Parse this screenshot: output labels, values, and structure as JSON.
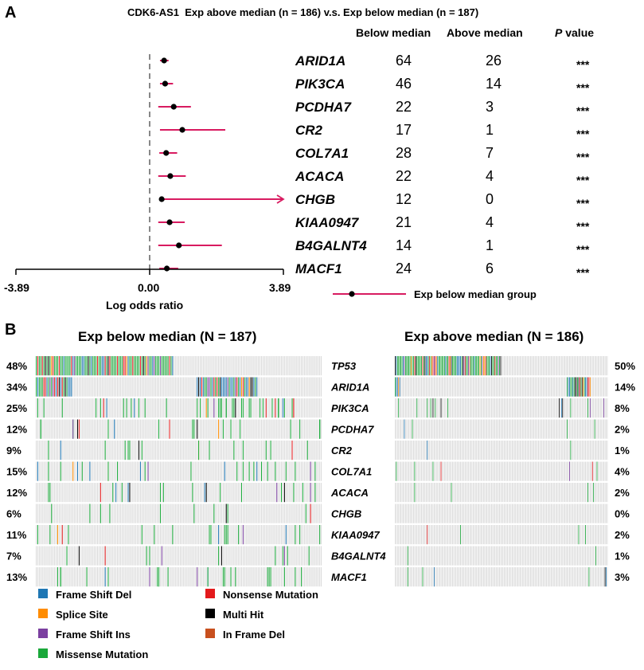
{
  "colors": {
    "whisker": "#d81b60",
    "dot": "#000000",
    "cell_bg": "#d9d9d9",
    "frame_shift_del": "#1f77b4",
    "splice_site": "#ff8c00",
    "frame_shift_ins": "#7b3fa0",
    "missense": "#1aa83a",
    "nonsense": "#e31a1c",
    "multi_hit": "#000000",
    "in_frame_del": "#c8501e"
  },
  "chart_data": [
    {
      "type": "forest",
      "panel_label": "A",
      "title": "CDK6-AS1  Exp above median (n = 186) v.s. Exp below median (n = 187)",
      "column_headers": {
        "below": "Below median",
        "above": "Above median",
        "p_italic": "P",
        "p_rest": " value"
      },
      "xlabel": "Log odds ratio",
      "xlim": [
        -3.89,
        3.89
      ],
      "ticks": [
        "-3.89",
        "0.00",
        "3.89"
      ],
      "legend": "Exp below median group",
      "rows": [
        {
          "gene": "ARID1A",
          "below": "64",
          "above": "26",
          "p": "***",
          "or": 0.42,
          "lo": 0.3,
          "hi": 0.55,
          "arrow": false
        },
        {
          "gene": "PIK3CA",
          "below": "46",
          "above": "14",
          "p": "***",
          "or": 0.45,
          "lo": 0.3,
          "hi": 0.68,
          "arrow": false
        },
        {
          "gene": "PCDHA7",
          "below": "22",
          "above": "3",
          "p": "***",
          "or": 0.7,
          "lo": 0.25,
          "hi": 1.2,
          "arrow": false
        },
        {
          "gene": "CR2",
          "below": "17",
          "above": "1",
          "p": "***",
          "or": 0.95,
          "lo": 0.3,
          "hi": 2.2,
          "arrow": false
        },
        {
          "gene": "COL7A1",
          "below": "28",
          "above": "7",
          "p": "***",
          "or": 0.48,
          "lo": 0.28,
          "hi": 0.8,
          "arrow": false
        },
        {
          "gene": "ACACA",
          "below": "22",
          "above": "4",
          "p": "***",
          "or": 0.6,
          "lo": 0.25,
          "hi": 1.05,
          "arrow": false
        },
        {
          "gene": "CHGB",
          "below": "12",
          "above": "0",
          "p": "***",
          "or": 0.35,
          "lo": 0.33,
          "hi": 3.89,
          "arrow": true
        },
        {
          "gene": "KIAA0947",
          "below": "21",
          "above": "4",
          "p": "***",
          "or": 0.58,
          "lo": 0.25,
          "hi": 1.02,
          "arrow": false
        },
        {
          "gene": "B4GALNT4",
          "below": "14",
          "above": "1",
          "p": "***",
          "or": 0.85,
          "lo": 0.25,
          "hi": 2.1,
          "arrow": false
        },
        {
          "gene": "MACF1",
          "below": "24",
          "above": "6",
          "p": "***",
          "or": 0.5,
          "lo": 0.28,
          "hi": 0.83,
          "arrow": false
        }
      ]
    },
    {
      "type": "oncoprint",
      "panel_label": "B",
      "title_left": "Exp below median (N = 187)",
      "title_right": "Exp above median (N = 186)",
      "n_left": 187,
      "n_right": 186,
      "genes": [
        "TP53",
        "ARID1A",
        "PIK3CA",
        "PCDHA7",
        "CR2",
        "COL7A1",
        "ACACA",
        "CHGB",
        "KIAA0947",
        "B4GALNT4",
        "MACF1"
      ],
      "pct_left": [
        "48%",
        "34%",
        "25%",
        "12%",
        "9%",
        "15%",
        "12%",
        "6%",
        "11%",
        "7%",
        "13%"
      ],
      "pct_right": [
        "50%",
        "14%",
        "8%",
        "2%",
        "1%",
        "4%",
        "2%",
        "0%",
        "2%",
        "1%",
        "3%"
      ],
      "legend": [
        {
          "label": "Frame Shift Del",
          "color": "#1f77b4"
        },
        {
          "label": "Splice Site",
          "color": "#ff8c00"
        },
        {
          "label": "Frame Shift Ins",
          "color": "#7b3fa0"
        },
        {
          "label": "Missense Mutation",
          "color": "#1aa83a"
        },
        {
          "label": "Nonsense Mutation",
          "color": "#e31a1c"
        },
        {
          "label": "Multi Hit",
          "color": "#000000"
        },
        {
          "label": "In Frame Del",
          "color": "#c8501e"
        }
      ]
    }
  ]
}
